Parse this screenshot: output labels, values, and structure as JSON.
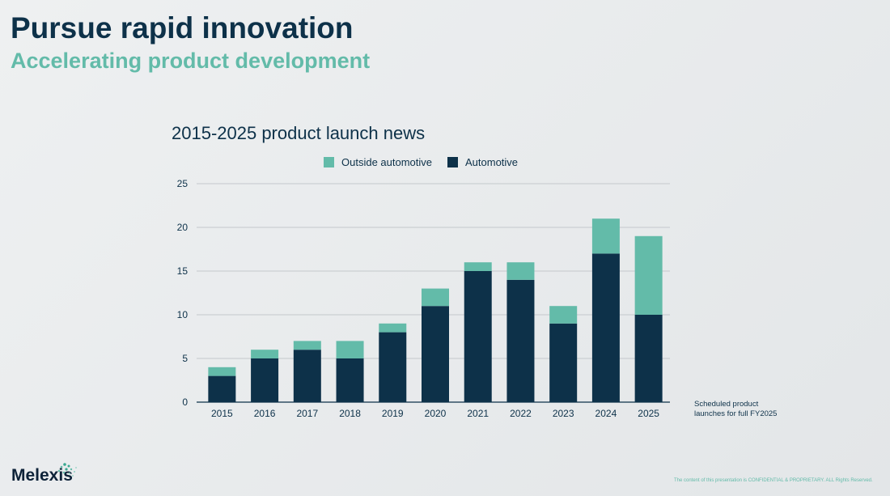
{
  "header": {
    "title": "Pursue rapid innovation",
    "subtitle": "Accelerating product development"
  },
  "chart_data": {
    "type": "bar",
    "stacked": true,
    "title": "2015-2025 product launch news",
    "categories": [
      "2015",
      "2016",
      "2017",
      "2018",
      "2019",
      "2020",
      "2021",
      "2022",
      "2023",
      "2024",
      "2025"
    ],
    "series": [
      {
        "name": "Automotive",
        "color": "#0d3149",
        "values": [
          3,
          5,
          6,
          5,
          8,
          11,
          15,
          14,
          9,
          17,
          10
        ]
      },
      {
        "name": "Outside automotive",
        "color": "#63bba9",
        "values": [
          1,
          1,
          1,
          2,
          1,
          2,
          1,
          2,
          2,
          4,
          9
        ]
      }
    ],
    "legend_order": [
      "Outside automotive",
      "Automotive"
    ],
    "legend_position": "top-center",
    "ylim": [
      0,
      25
    ],
    "yticks": [
      0,
      5,
      10,
      15,
      20,
      25
    ],
    "grid": true,
    "xlabel": "",
    "ylabel": ""
  },
  "note": {
    "line1": "Scheduled product",
    "line2": "launches for full FY2025"
  },
  "logo": {
    "text": "Melexis"
  },
  "footer": {
    "text": "The content of this presentation is CONFIDENTIAL & PROPRIETARY. ALL Rights Reserved."
  }
}
